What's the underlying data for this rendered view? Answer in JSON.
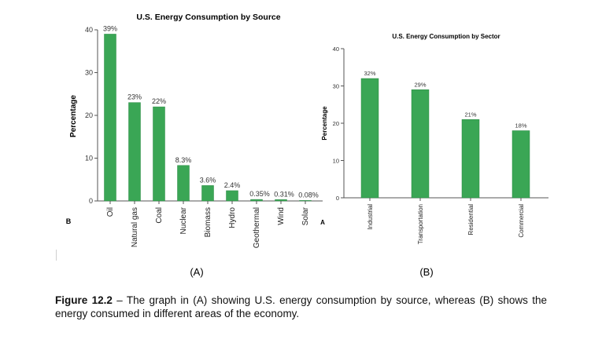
{
  "figure": {
    "caption_label": "Figure 12.2",
    "caption_text": " – The graph in (A) showing U.S. energy consumption by source, whereas (B) shows the energy consumed in different areas of the economy."
  },
  "colors": {
    "bar": "#3aa655",
    "bar_edge": "#2b8a44",
    "axis": "#555555",
    "text": "#222222"
  },
  "chart_data": [
    {
      "type": "bar",
      "panel_label": "(A)",
      "corner_label": "B",
      "title": "U.S. Energy Consumption by Source",
      "xlabel": "",
      "ylabel": "Percentage",
      "ylim": [
        0,
        40
      ],
      "yticks": [
        "0",
        "10",
        "20",
        "30",
        "40"
      ],
      "categories": [
        "Oil",
        "Natural gas",
        "Coal",
        "Nuclear",
        "Biomass",
        "Hydro",
        "Geothermal",
        "Wind",
        "Solar"
      ],
      "values": [
        39,
        23,
        22,
        8.3,
        3.6,
        2.4,
        0.35,
        0.31,
        0.08
      ],
      "labels": [
        "39%",
        "23%",
        "22%",
        "8.3%",
        "3.6%",
        "2.4%",
        "0.35%",
        "0.31%",
        "0.08%"
      ],
      "grid": false
    },
    {
      "type": "bar",
      "panel_label": "(B)",
      "corner_label": "A",
      "title": "U.S. Energy Consumption by Sector",
      "xlabel": "",
      "ylabel": "Percentage",
      "ylim": [
        0,
        40
      ],
      "yticks": [
        "0",
        "10",
        "20",
        "30",
        "40"
      ],
      "categories": [
        "Industrial",
        "Transportation",
        "Residential",
        "Commercial"
      ],
      "values": [
        32,
        29,
        21,
        18
      ],
      "labels": [
        "32%",
        "29%",
        "21%",
        "18%"
      ],
      "grid": false
    }
  ]
}
